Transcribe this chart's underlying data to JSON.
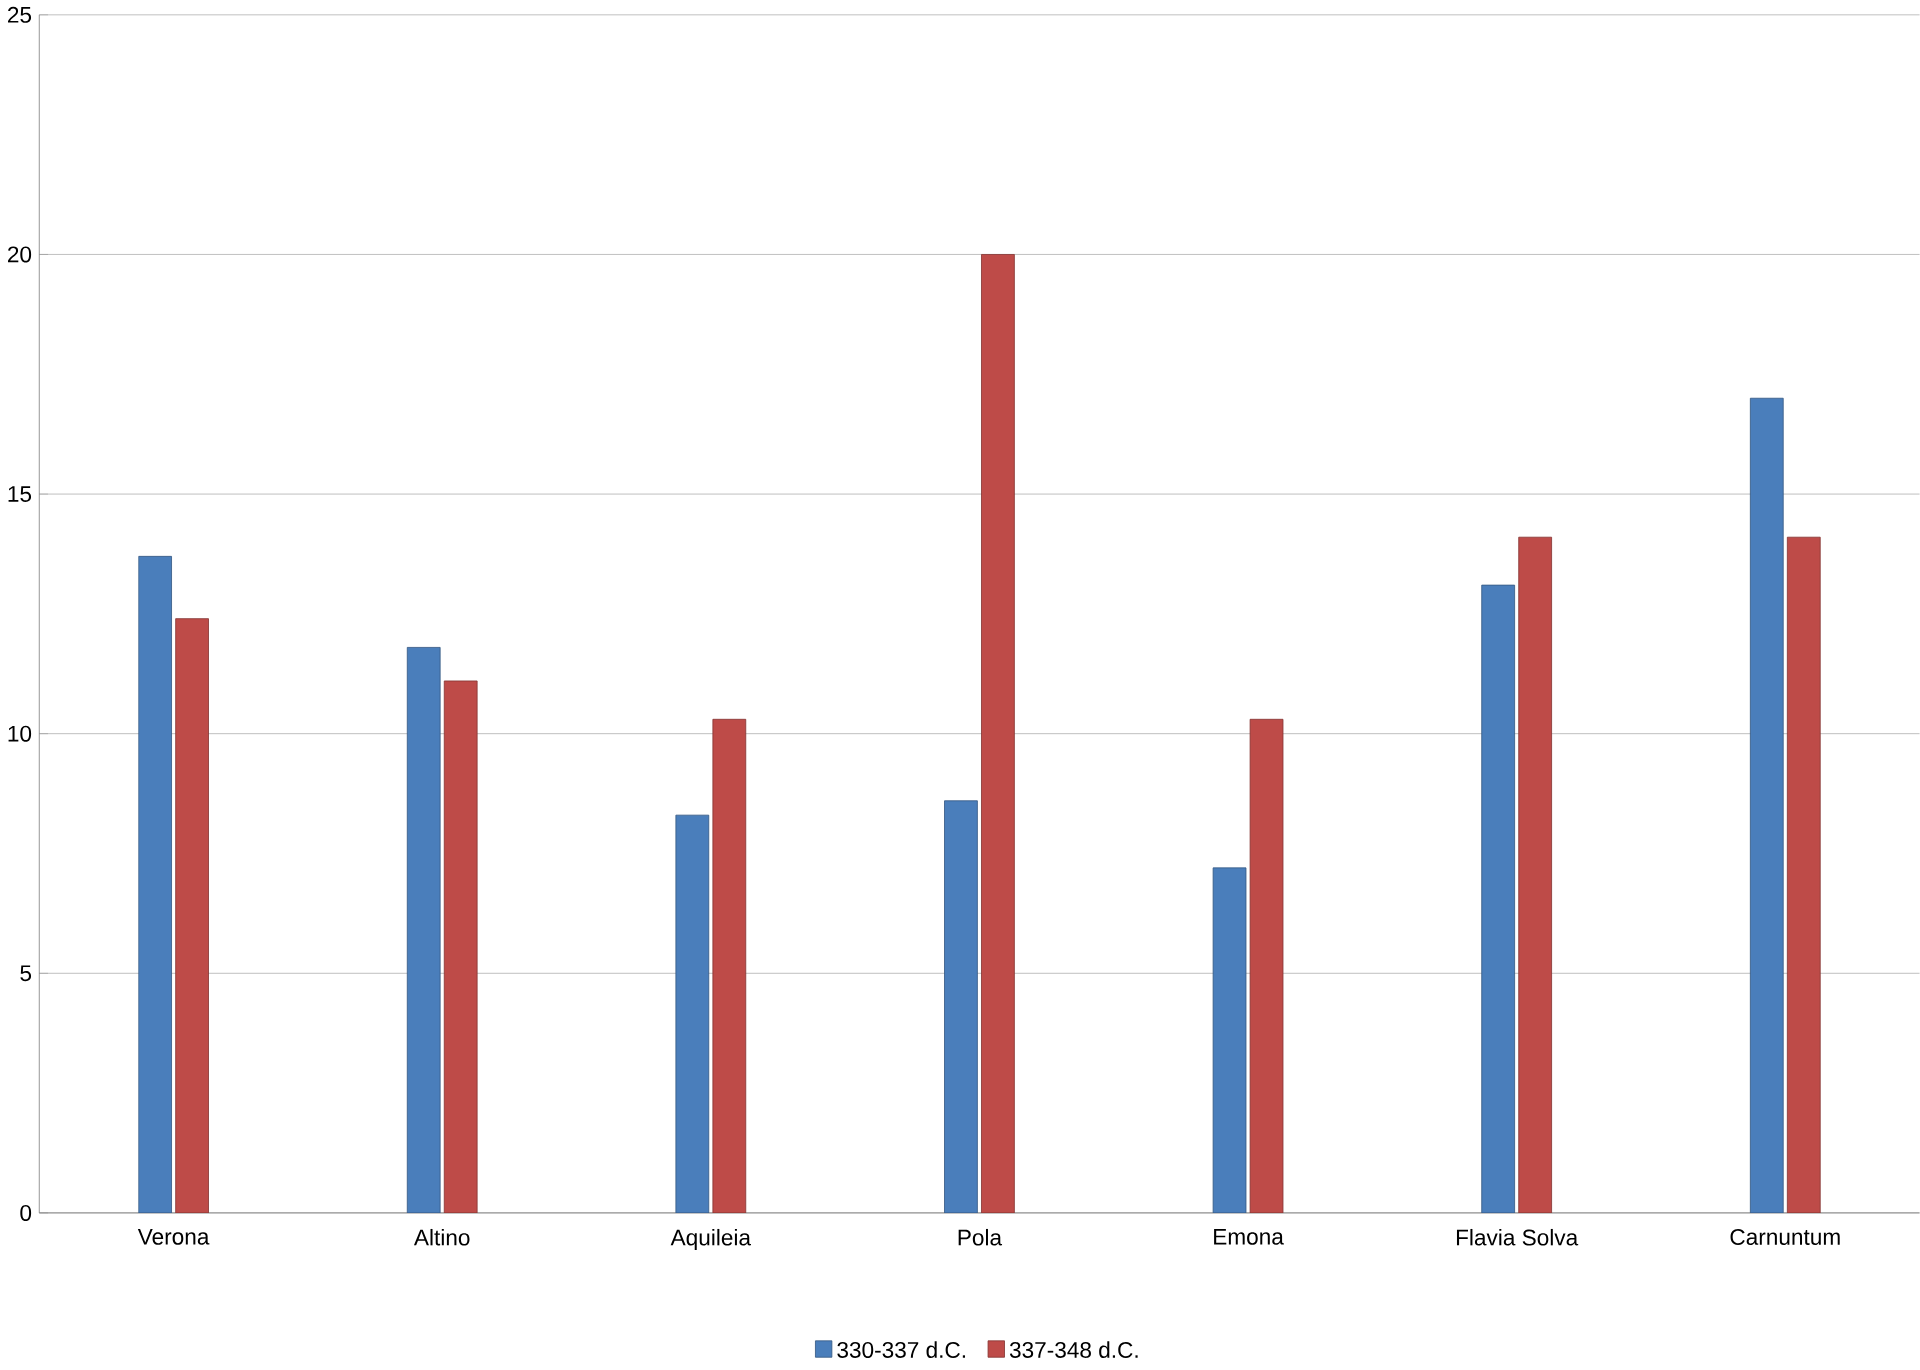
{
  "chart_data": {
    "type": "bar",
    "categories": [
      "Verona",
      "Altino",
      "Aquileia",
      "Pola",
      "Emona",
      "Flavia Solva",
      "Carnuntum"
    ],
    "series": [
      {
        "name": "330-337 d.C.",
        "color": "#4a7ebb",
        "values": [
          13.7,
          11.8,
          8.3,
          8.6,
          7.2,
          13.1,
          17.0
        ]
      },
      {
        "name": "337-348 d.C.",
        "color": "#be4b48",
        "values": [
          12.4,
          11.1,
          10.3,
          20.0,
          10.3,
          14.1,
          14.1
        ]
      }
    ],
    "ylim": [
      0,
      25
    ],
    "yticks": [
      0,
      5,
      10,
      15,
      20,
      25
    ],
    "grid": "y",
    "legend": "bottom"
  }
}
